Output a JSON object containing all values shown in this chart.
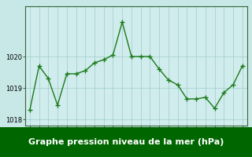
{
  "x": [
    0,
    1,
    2,
    3,
    4,
    5,
    6,
    7,
    8,
    9,
    10,
    11,
    12,
    13,
    14,
    15,
    16,
    17,
    18,
    19,
    20,
    21,
    22,
    23
  ],
  "y": [
    1018.3,
    1019.7,
    1019.3,
    1018.45,
    1019.45,
    1019.45,
    1019.55,
    1019.8,
    1019.9,
    1020.05,
    1021.1,
    1020.0,
    1020.0,
    1020.0,
    1019.6,
    1019.25,
    1019.1,
    1018.65,
    1018.65,
    1018.7,
    1018.35,
    1018.85,
    1019.1,
    1019.7
  ],
  "line_color": "#1a7a1a",
  "marker": "+",
  "marker_size": 4,
  "marker_linewidth": 1.0,
  "line_width": 1.0,
  "background_color": "#c8e8e8",
  "plot_bg_color": "#d0ecec",
  "grid_color": "#a0cccc",
  "xlabel": "Graphe pression niveau de la mer (hPa)",
  "xlabel_fontsize": 8,
  "yticks": [
    1018,
    1019,
    1020
  ],
  "ylim": [
    1017.8,
    1021.6
  ],
  "xlim": [
    -0.5,
    23.5
  ],
  "xticks": [
    0,
    1,
    2,
    3,
    4,
    5,
    6,
    7,
    8,
    9,
    10,
    11,
    12,
    13,
    14,
    15,
    16,
    17,
    18,
    19,
    20,
    21,
    22,
    23
  ],
  "tick_fontsize": 5.5,
  "banner_color": "#006600",
  "border_color": "#336633"
}
